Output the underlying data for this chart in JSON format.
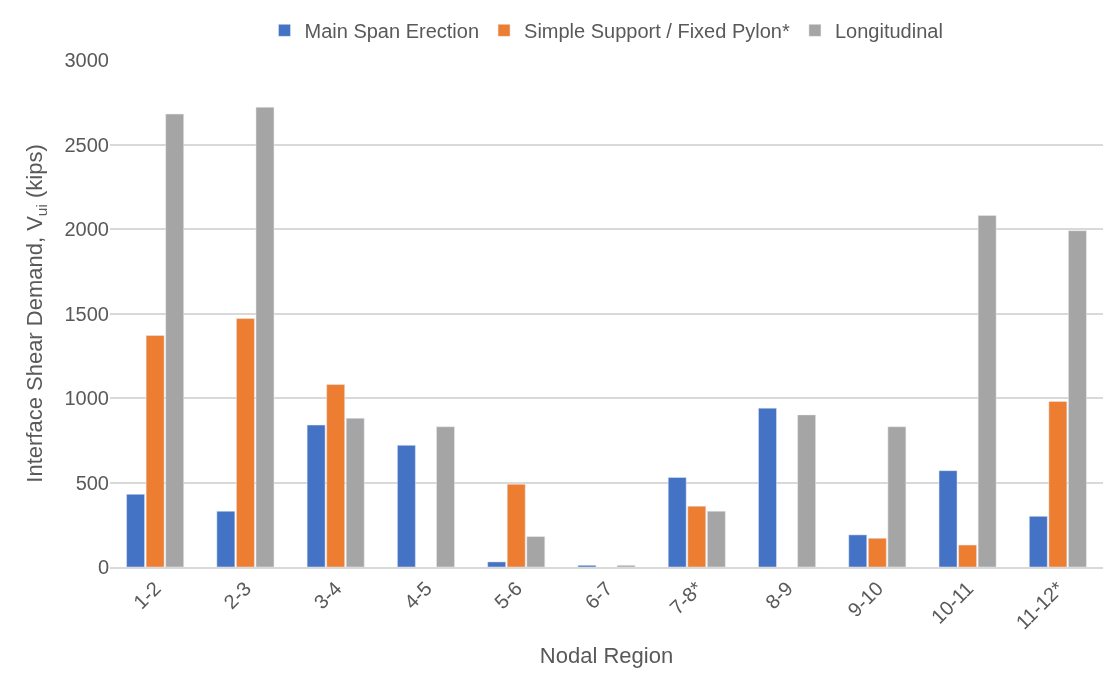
{
  "chart_data": {
    "type": "bar",
    "xlabel": "Nodal Region",
    "ylabel": "Interface Shear Demand, V$_{ui}$ (kips)",
    "categories": [
      "1-2",
      "2-3",
      "3-4",
      "4-5",
      "5-6",
      "6-7",
      "7-8*",
      "8-9",
      "9-10",
      "10-11",
      "11-12*"
    ],
    "series": [
      {
        "name": "Main Span Erection",
        "color": "#4472c4",
        "values": [
          430,
          330,
          840,
          720,
          30,
          10,
          530,
          940,
          190,
          570,
          300
        ]
      },
      {
        "name": "Simple Support / Fixed Pylon*",
        "color": "#ed7d31",
        "values": [
          1370,
          1470,
          1080,
          null,
          490,
          null,
          360,
          null,
          170,
          130,
          980
        ]
      },
      {
        "name": "Longitudinal",
        "color": "#a5a5a5",
        "values": [
          2680,
          2720,
          880,
          830,
          180,
          10,
          330,
          900,
          830,
          2080,
          1990
        ]
      }
    ],
    "ylim": [
      0,
      3000
    ],
    "yticks": [
      0,
      500,
      1000,
      1500,
      2000,
      2500,
      3000
    ],
    "grid": "y",
    "legend": "top"
  }
}
